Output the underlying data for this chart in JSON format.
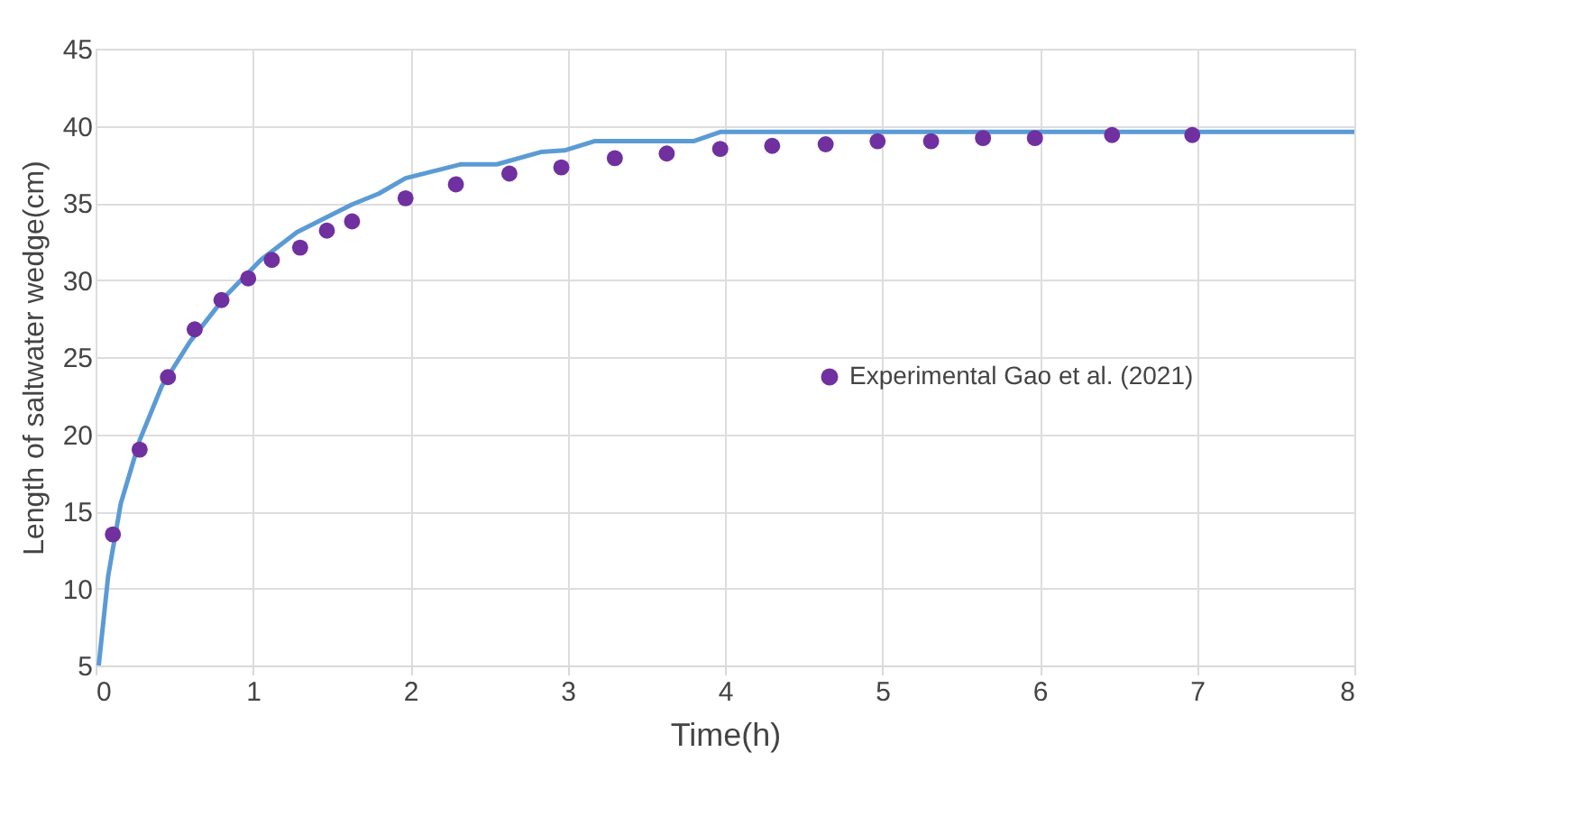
{
  "chart_data": {
    "type": "line",
    "xlabel": "Time(h)",
    "ylabel": "Length of saltwater wedge(cm)",
    "xlim": [
      0,
      8
    ],
    "ylim": [
      5,
      45
    ],
    "xticks": [
      0,
      1,
      2,
      3,
      4,
      5,
      6,
      7,
      8
    ],
    "yticks": [
      5,
      10,
      15,
      20,
      25,
      30,
      35,
      40,
      45
    ],
    "grid": true,
    "legend": "right",
    "series": [
      {
        "color": "#5b9bd5",
        "marker": "none",
        "line_style": "solid",
        "x": [
          0.02,
          0.08,
          0.16,
          0.28,
          0.42,
          0.6,
          0.83,
          1.05,
          1.28,
          1.63,
          1.8,
          1.97,
          2.32,
          2.55,
          2.83,
          2.98,
          3.17,
          3.8,
          3.97,
          8
        ],
        "values": [
          5,
          10.8,
          15.5,
          19.6,
          23.1,
          26,
          29,
          31.3,
          33.1,
          34.9,
          35.6,
          36.6,
          37.5,
          37.5,
          38.3,
          38.4,
          39,
          39,
          39.6,
          39.6
        ]
      },
      {
        "type": "scatter",
        "name": "Experimental Gao et al. (2021)",
        "color": "#7030a0",
        "marker": "circle",
        "x": [
          0.11,
          0.28,
          0.46,
          0.63,
          0.8,
          0.97,
          1.12,
          1.3,
          1.47,
          1.63,
          1.97,
          2.29,
          2.63,
          2.96,
          3.3,
          3.63,
          3.97,
          4.3,
          4.64,
          4.97,
          5.31,
          5.64,
          5.97,
          6.46,
          6.97
        ],
        "values": [
          13.5,
          19,
          23.7,
          26.8,
          28.7,
          30.1,
          31.3,
          32.1,
          33.2,
          33.8,
          35.3,
          36.2,
          36.9,
          37.3,
          37.9,
          38.2,
          38.5,
          38.7,
          38.8,
          39,
          39,
          39.2,
          39.2,
          39.4,
          39.4
        ]
      }
    ]
  }
}
